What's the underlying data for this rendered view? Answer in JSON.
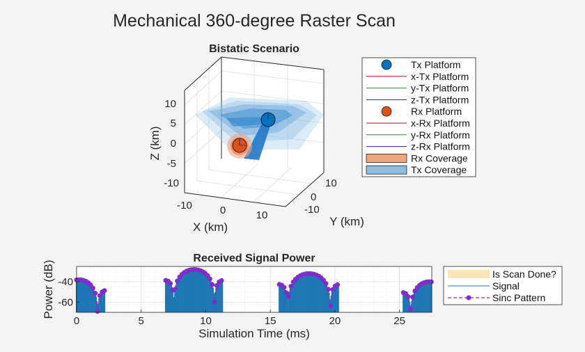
{
  "figure": {
    "title": "Mechanical 360-degree Raster Scan"
  },
  "scenario": {
    "title": "Bistatic Scenario",
    "xlabel": "X (km)",
    "ylabel": "Y (km)",
    "zlabel": "Z (km)",
    "x_ticks": [
      "-10",
      "0",
      "10"
    ],
    "y_ticks": [
      "-10",
      "0",
      "10"
    ],
    "z_ticks": [
      "10",
      "5",
      "0",
      "-5",
      "-10"
    ],
    "legend": [
      {
        "label": "Tx Platform",
        "kind": "marker",
        "color": "#0072bd"
      },
      {
        "label": "x-Tx Platform",
        "kind": "line",
        "color": "#a2142f"
      },
      {
        "label": "y-Tx Platform",
        "kind": "line",
        "color": "#2e8b2e"
      },
      {
        "label": "z-Tx Platform",
        "kind": "line",
        "color": "#1f1f8f"
      },
      {
        "label": "Rx Platform",
        "kind": "marker",
        "color": "#d95319"
      },
      {
        "label": "x-Rx Platform",
        "kind": "line",
        "color": "#a2142f"
      },
      {
        "label": "y-Rx Platform",
        "kind": "line",
        "color": "#2e8b2e"
      },
      {
        "label": "z-Rx Platform",
        "kind": "line",
        "color": "#1f1f8f"
      },
      {
        "label": "Rx Coverage",
        "kind": "patch",
        "color": "#f0a47c"
      },
      {
        "label": "Tx Coverage",
        "kind": "patch",
        "color": "#8fbde0"
      }
    ]
  },
  "chart_data": {
    "type": "bar",
    "title": "Received Signal Power",
    "xlabel": "Simulation Time (ms)",
    "ylabel": "Power (dB)",
    "xlim": [
      0,
      27.5
    ],
    "ylim": [
      -70,
      -25
    ],
    "x_ticks": [
      0,
      5,
      10,
      15,
      20,
      25
    ],
    "y_ticks": [
      -40,
      -60
    ],
    "grid": true,
    "legend_position": "right",
    "series": [
      {
        "name": "Is Scan Done?",
        "kind": "area",
        "color": "#fbe5b6"
      },
      {
        "name": "Signal",
        "kind": "stem",
        "color": "#1f77b4",
        "lobes": [
          {
            "center": 0.2,
            "peak": -38,
            "halfwidth": 2.0
          },
          {
            "center": 9.1,
            "peak": -28,
            "halfwidth": 2.2
          },
          {
            "center": 18.0,
            "peak": -32,
            "halfwidth": 2.3
          },
          {
            "center": 27.3,
            "peak": -40,
            "halfwidth": 2.0
          }
        ]
      },
      {
        "name": "Sinc Pattern",
        "kind": "marker-line",
        "color": "#7e2fc9",
        "marker": "circle"
      }
    ]
  }
}
